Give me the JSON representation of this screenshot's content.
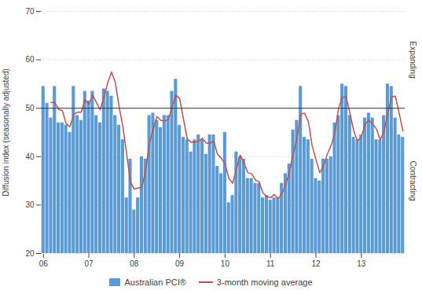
{
  "chart_data": {
    "type": "bar",
    "ylabel": "Diffusion index (seasonally adjusted)",
    "categories": [
      "06",
      null,
      null,
      null,
      null,
      null,
      null,
      null,
      null,
      null,
      null,
      null,
      "07",
      null,
      null,
      null,
      null,
      null,
      null,
      null,
      null,
      null,
      null,
      null,
      "08",
      null,
      null,
      null,
      null,
      null,
      null,
      null,
      null,
      null,
      null,
      null,
      "09",
      null,
      null,
      null,
      null,
      null,
      null,
      null,
      null,
      null,
      null,
      null,
      "10",
      null,
      null,
      null,
      null,
      null,
      null,
      null,
      null,
      null,
      null,
      null,
      "11",
      null,
      null,
      null,
      null,
      null,
      null,
      null,
      null,
      null,
      null,
      null,
      "12",
      null,
      null,
      null,
      null,
      null,
      null,
      null,
      null,
      null,
      null,
      null,
      "13",
      null,
      null,
      null,
      null,
      null,
      null,
      null,
      null,
      null,
      null,
      null
    ],
    "series": [
      {
        "name": "Australian PCI®",
        "type": "bar",
        "color": "#5b9bd5",
        "values": [
          54.5,
          51.0,
          48.0,
          54.5,
          47.0,
          47.0,
          46.5,
          45.0,
          54.5,
          48.5,
          47.5,
          53.5,
          51.5,
          53.5,
          48.5,
          47.0,
          54.0,
          53.5,
          52.5,
          48.5,
          46.5,
          43.5,
          31.5,
          39.5,
          29.0,
          31.5,
          40.0,
          39.5,
          48.5,
          49.0,
          47.5,
          46.0,
          48.5,
          48.5,
          53.5,
          56.0,
          46.5,
          44.0,
          43.5,
          41.0,
          43.5,
          44.5,
          43.5,
          40.5,
          44.5,
          44.5,
          38.0,
          36.5,
          45.0,
          30.5,
          32.0,
          41.0,
          40.0,
          39.5,
          35.5,
          35.5,
          34.5,
          34.5,
          31.5,
          32.0,
          31.0,
          31.5,
          31.5,
          34.5,
          36.5,
          38.5,
          45.5,
          47.5,
          54.5,
          44.0,
          43.5,
          39.5,
          35.5,
          35.0,
          39.5,
          39.5,
          40.0,
          47.0,
          48.5,
          55.0,
          54.5,
          48.5,
          44.0,
          43.5,
          44.5,
          48.0,
          49.0,
          48.0,
          43.5,
          43.5,
          48.5,
          55.0,
          54.5,
          48.0,
          44.5,
          44.0
        ]
      },
      {
        "name": "3-month moving average",
        "type": "line",
        "color": "#c0504d",
        "values": [
          null,
          null,
          51.2,
          51.2,
          49.8,
          49.5,
          46.8,
          46.2,
          48.7,
          49.2,
          49.2,
          51.8,
          50.8,
          52.8,
          51.2,
          49.7,
          52.3,
          55.3,
          57.5,
          55.3,
          50.3,
          46.2,
          40.5,
          34.8,
          33.3,
          33.5,
          33.7,
          37.0,
          42.7,
          45.7,
          48.3,
          47.5,
          47.3,
          47.7,
          50.2,
          52.7,
          52.0,
          47.8,
          43.7,
          43.0,
          43.0,
          43.2,
          43.8,
          42.8,
          42.8,
          43.2,
          40.5,
          39.7,
          38.5,
          35.5,
          34.5,
          37.5,
          40.3,
          38.7,
          36.7,
          36.5,
          35.2,
          34.8,
          32.5,
          31.8,
          31.5,
          32.2,
          31.3,
          32.3,
          34.2,
          36.8,
          40.5,
          43.8,
          48.8,
          49.0,
          47.3,
          42.3,
          39.5,
          36.7,
          38.0,
          40.5,
          42.3,
          44.8,
          50.0,
          52.3,
          52.3,
          49.0,
          45.3,
          43.3,
          44.0,
          46.7,
          47.5,
          46.8,
          45.7,
          43.5,
          45.2,
          49.0,
          52.3,
          52.5,
          49.0,
          45.3
        ]
      }
    ],
    "reference_line": 50,
    "annotations": [
      {
        "text": "Expanding",
        "y": 60
      },
      {
        "text": "Contracting",
        "y": 35
      }
    ],
    "ylim": [
      20,
      70
    ],
    "yticks": [
      20,
      30,
      40,
      50,
      60,
      70
    ],
    "grid": true,
    "legend": "lower center"
  }
}
